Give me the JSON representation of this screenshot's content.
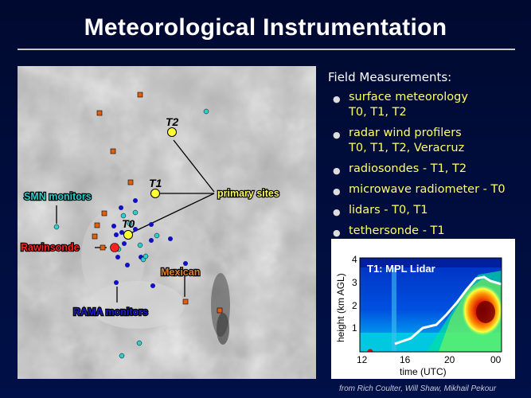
{
  "title": "Meteorological Instrumentation",
  "map": {
    "sites": [
      "T2",
      "T1",
      "T0"
    ],
    "labels": {
      "smn": "SMN monitors",
      "primary": "primary sites",
      "rawinsonde": "Rawinsonde",
      "mexican": "Mexican",
      "rama": "RAMA monitors"
    }
  },
  "field": {
    "heading": "Field Measurements:",
    "items": [
      {
        "line1": "surface meteorology",
        "line2": "T0, T1, T2"
      },
      {
        "line1": "radar wind profilers",
        "line2": "T0, T1, T2, Veracruz"
      },
      {
        "line1": "radiosondes - T1, T2",
        "line2": ""
      },
      {
        "line1": "microwave radiometer - T0",
        "line2": ""
      },
      {
        "line1": "lidars - T0, T1",
        "line2": ""
      },
      {
        "line1": "tethersonde - T1",
        "line2": ""
      }
    ]
  },
  "lidar_plot": {
    "title": "T1: MPL Lidar",
    "ylabel": "height (km AGL)",
    "xlabel": "time (UTC)",
    "yticks": [
      "1",
      "2",
      "3",
      "4"
    ],
    "xticks": [
      "12",
      "16",
      "20",
      "00"
    ]
  },
  "credit": "from Rich Coulter, Will Shaw, Mikhail Pekour",
  "colors": {
    "background": "#000c3a",
    "site": "#ffff33",
    "label_yellow": "#ffff66",
    "smn": "#33cccc",
    "rama": "#1010c0",
    "mexican": "#e06010",
    "rawinsonde": "#ff2020"
  }
}
